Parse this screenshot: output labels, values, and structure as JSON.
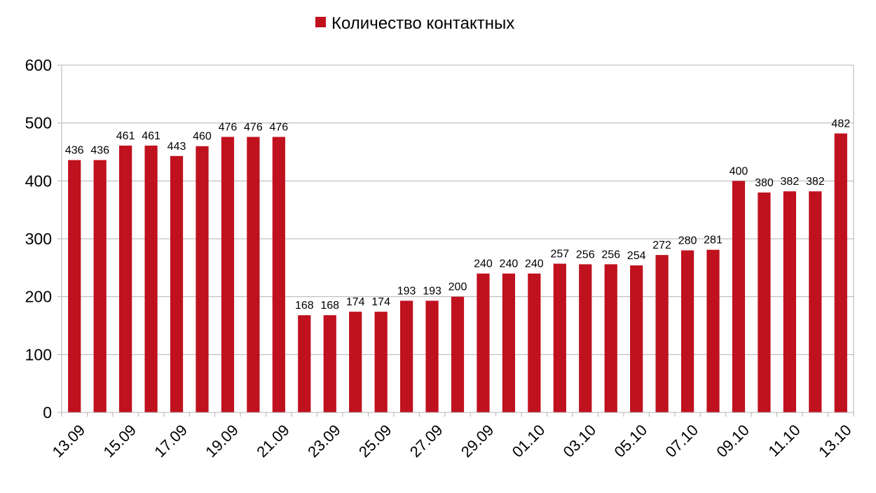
{
  "chart_data": {
    "type": "bar",
    "categories": [
      "13.09",
      "14.09",
      "15.09",
      "16.09",
      "17.09",
      "18.09",
      "19.09",
      "20.09",
      "21.09",
      "22.09",
      "23.09",
      "24.09",
      "25.09",
      "26.09",
      "27.09",
      "28.09",
      "29.09",
      "30.09",
      "01.10",
      "02.10",
      "03.10",
      "04.10",
      "05.10",
      "06.10",
      "07.10",
      "08.10",
      "09.10",
      "10.10",
      "11.10",
      "12.10",
      "13.10"
    ],
    "tick_labels": [
      "13.09",
      "15.09",
      "17.09",
      "19.09",
      "21.09",
      "23.09",
      "25.09",
      "27.09",
      "29.09",
      "01.10",
      "03.10",
      "05.10",
      "07.10",
      "09.10",
      "11.10",
      "13.10"
    ],
    "series": [
      {
        "name": "Количество контактных",
        "color": "#c0111f",
        "values": [
          436,
          436,
          461,
          461,
          443,
          460,
          476,
          476,
          476,
          168,
          168,
          174,
          174,
          193,
          193,
          200,
          240,
          240,
          240,
          257,
          256,
          256,
          254,
          272,
          280,
          281,
          400,
          380,
          382,
          382,
          482
        ]
      }
    ],
    "ylim": [
      0,
      600
    ],
    "yticks": [
      0,
      100,
      200,
      300,
      400,
      500,
      600
    ],
    "grid": true,
    "legend_position": "top-center"
  }
}
